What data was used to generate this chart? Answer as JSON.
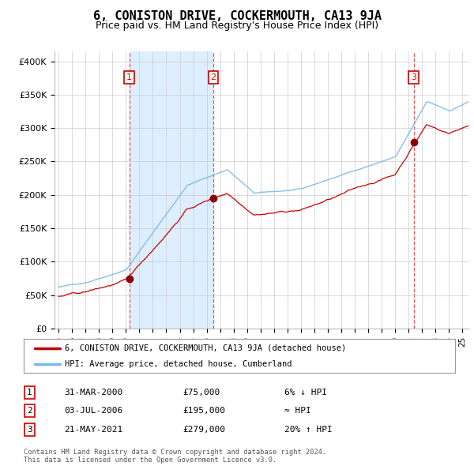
{
  "title": "6, CONISTON DRIVE, COCKERMOUTH, CA13 9JA",
  "subtitle": "Price paid vs. HM Land Registry's House Price Index (HPI)",
  "ylabel_ticks": [
    "£0",
    "£50K",
    "£100K",
    "£150K",
    "£200K",
    "£250K",
    "£300K",
    "£350K",
    "£400K"
  ],
  "ytick_values": [
    0,
    50000,
    100000,
    150000,
    200000,
    250000,
    300000,
    350000,
    400000
  ],
  "ylim": [
    0,
    415000
  ],
  "xlim_start": 1994.7,
  "xlim_end": 2025.5,
  "sale_dates": [
    2000.25,
    2006.5,
    2021.38
  ],
  "sale_prices": [
    75000,
    195000,
    279000
  ],
  "sale_labels": [
    "1",
    "2",
    "3"
  ],
  "hpi_line_color": "#7ab8e8",
  "price_line_color": "#cc0000",
  "sale_dot_color": "#8b0000",
  "sale_label_color": "#cc0000",
  "dashed_line_color": "#dd4444",
  "grid_color": "#cccccc",
  "background_color": "#ffffff",
  "shade_color": "#ddeeff",
  "legend_entry1": "6, CONISTON DRIVE, COCKERMOUTH, CA13 9JA (detached house)",
  "legend_entry2": "HPI: Average price, detached house, Cumberland",
  "table_rows": [
    [
      "1",
      "31-MAR-2000",
      "£75,000",
      "6% ↓ HPI"
    ],
    [
      "2",
      "03-JUL-2006",
      "£195,000",
      "≈ HPI"
    ],
    [
      "3",
      "21-MAY-2021",
      "£279,000",
      "20% ↑ HPI"
    ]
  ],
  "footer_text": "Contains HM Land Registry data © Crown copyright and database right 2024.\nThis data is licensed under the Open Government Licence v3.0.",
  "title_fontsize": 11,
  "subtitle_fontsize": 9
}
